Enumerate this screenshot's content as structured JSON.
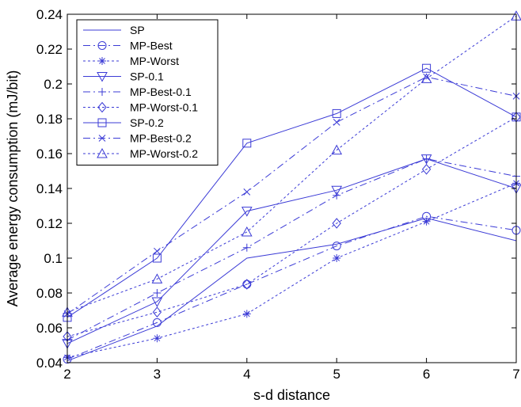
{
  "chart_data": {
    "type": "line",
    "xlabel": "s-d distance",
    "ylabel": "Average energy consumption (mJ/bit)",
    "xlim": [
      2,
      7
    ],
    "ylim": [
      0.04,
      0.24
    ],
    "x_ticks": [
      "2",
      "3",
      "4",
      "5",
      "6",
      "7"
    ],
    "y_ticks": [
      "0.04",
      "0.06",
      "0.08",
      "0.1",
      "0.12",
      "0.14",
      "0.16",
      "0.18",
      "0.2",
      "0.22",
      "0.24"
    ],
    "grid": false,
    "legend_position": "top-left",
    "line_color": "#3b3bd6",
    "x": [
      2,
      3,
      4,
      5,
      6,
      7
    ],
    "series": [
      {
        "name": "SP",
        "dash": "solid",
        "marker": "none",
        "values": [
          0.041,
          0.061,
          0.1,
          0.108,
          0.123,
          0.11
        ]
      },
      {
        "name": "MP-Best",
        "dash": "dashdot",
        "marker": "circle",
        "values": [
          0.042,
          0.063,
          0.085,
          0.107,
          0.124,
          0.116
        ]
      },
      {
        "name": "MP-Worst",
        "dash": "dotted",
        "marker": "star",
        "values": [
          0.043,
          0.054,
          0.068,
          0.1,
          0.121,
          0.143
        ]
      },
      {
        "name": "SP-0.1",
        "dash": "solid",
        "marker": "triangle-down",
        "values": [
          0.051,
          0.075,
          0.127,
          0.139,
          0.157,
          0.14
        ]
      },
      {
        "name": "MP-Best-0.1",
        "dash": "dashdot",
        "marker": "plus",
        "values": [
          0.053,
          0.08,
          0.106,
          0.136,
          0.157,
          0.147
        ]
      },
      {
        "name": "MP-Worst-0.1",
        "dash": "dotted",
        "marker": "diamond",
        "values": [
          0.055,
          0.069,
          0.085,
          0.12,
          0.151,
          0.181
        ]
      },
      {
        "name": "SP-0.2",
        "dash": "solid",
        "marker": "square",
        "values": [
          0.066,
          0.1,
          0.166,
          0.183,
          0.209,
          0.181
        ]
      },
      {
        "name": "MP-Best-0.2",
        "dash": "dashdot",
        "marker": "x",
        "values": [
          0.068,
          0.104,
          0.138,
          0.178,
          0.204,
          0.193
        ]
      },
      {
        "name": "MP-Worst-0.2",
        "dash": "dotted",
        "marker": "triangle-up",
        "values": [
          0.069,
          0.088,
          0.115,
          0.162,
          0.203,
          0.239
        ]
      }
    ]
  }
}
